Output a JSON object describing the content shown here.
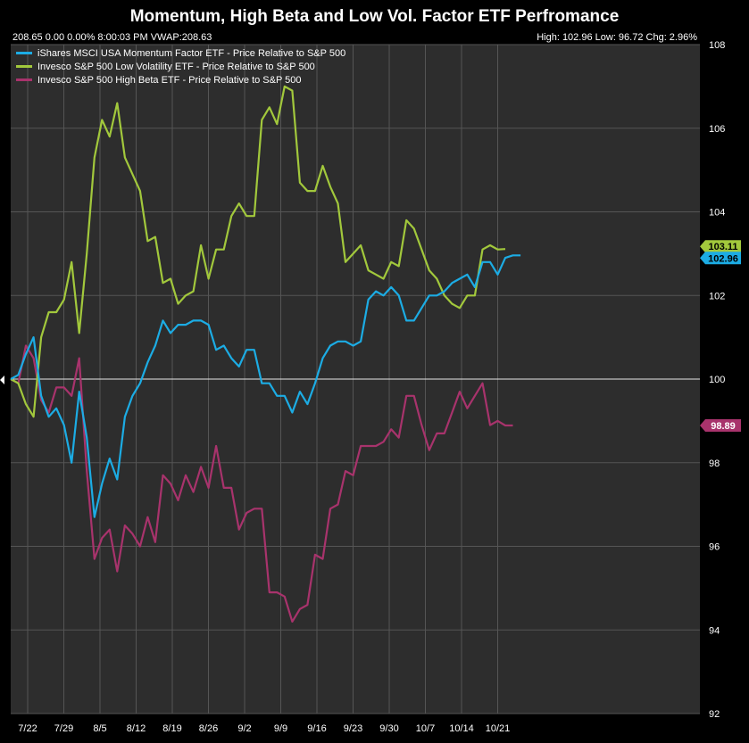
{
  "header": {
    "title": "Momentum, High Beta and Low Vol. Factor ETF Perfromance",
    "info_left": "208.65 0.00 0.00% 8:00:03 PM VWAP:208.63",
    "info_right": "High: 102.96 Low: 96.72 Chg: 2.96%"
  },
  "chart_data": {
    "type": "line",
    "title": "Momentum, High Beta and Low Vol. Factor ETF Perfromance",
    "x_tick_labels": [
      "7/22",
      "7/29",
      "8/5",
      "8/12",
      "8/19",
      "8/26",
      "9/2",
      "9/9",
      "9/16",
      "9/23",
      "9/30",
      "10/7",
      "10/14",
      "10/21"
    ],
    "y_ticks": [
      92,
      94,
      96,
      98,
      100,
      102,
      104,
      106,
      108
    ],
    "ylim": [
      92,
      108
    ],
    "baseline": 100,
    "grid": true,
    "legend_position": "top-left",
    "background": "#2d2d2d",
    "grid_color": "#555555",
    "series": [
      {
        "name": "iShares MSCI USA Momentum Factor ETF - Price Relative to S&P 500",
        "color": "#1cace4",
        "last_label": "102.96",
        "values": [
          100.0,
          100.1,
          100.6,
          101.0,
          99.6,
          99.1,
          99.3,
          98.9,
          98.0,
          99.7,
          98.6,
          96.7,
          97.5,
          98.1,
          97.6,
          99.1,
          99.6,
          99.9,
          100.4,
          100.8,
          101.4,
          101.1,
          101.3,
          101.3,
          101.4,
          101.4,
          101.3,
          100.7,
          100.8,
          100.5,
          100.3,
          100.7,
          100.7,
          99.9,
          99.9,
          99.6,
          99.6,
          99.2,
          99.7,
          99.4,
          99.9,
          100.5,
          100.8,
          100.9,
          100.9,
          100.8,
          100.9,
          101.9,
          102.1,
          102.0,
          102.2,
          102.0,
          101.4,
          101.4,
          101.7,
          102.0,
          102.0,
          102.1,
          102.3,
          102.4,
          102.5,
          102.2,
          102.8,
          102.8,
          102.5,
          102.9,
          102.96,
          102.96
        ]
      },
      {
        "name": "Invesco S&P 500 Low Volatility ETF - Price Relative to S&P 500",
        "color": "#a2c83c",
        "last_label": "103.11",
        "values": [
          100.0,
          99.9,
          99.4,
          99.1,
          101.0,
          101.6,
          101.6,
          101.9,
          102.8,
          101.1,
          103.0,
          105.3,
          106.2,
          105.8,
          106.6,
          105.3,
          104.9,
          104.5,
          103.3,
          103.4,
          102.3,
          102.4,
          101.8,
          102.0,
          102.1,
          103.2,
          102.4,
          103.1,
          103.1,
          103.9,
          104.2,
          103.9,
          103.9,
          106.2,
          106.5,
          106.1,
          107.0,
          106.9,
          104.7,
          104.5,
          104.5,
          105.1,
          104.6,
          104.2,
          102.8,
          103.0,
          103.2,
          102.6,
          102.5,
          102.4,
          102.8,
          102.7,
          103.8,
          103.6,
          103.1,
          102.6,
          102.4,
          102.0,
          101.8,
          101.7,
          102.0,
          102.0,
          103.1,
          103.2,
          103.1,
          103.11
        ]
      },
      {
        "name": "Invesco S&P 500 High Beta ETF - Price Relative to S&P 500",
        "color": "#a8336c",
        "last_label": "98.89",
        "values": [
          100.0,
          99.9,
          100.8,
          100.5,
          99.5,
          99.2,
          99.8,
          99.8,
          99.6,
          100.5,
          97.8,
          95.7,
          96.2,
          96.4,
          95.4,
          96.5,
          96.3,
          96.0,
          96.7,
          96.1,
          97.7,
          97.5,
          97.1,
          97.7,
          97.3,
          97.9,
          97.4,
          98.4,
          97.4,
          97.4,
          96.4,
          96.8,
          96.9,
          96.9,
          94.9,
          94.9,
          94.8,
          94.2,
          94.5,
          94.6,
          95.8,
          95.7,
          96.9,
          97.0,
          97.8,
          97.7,
          98.4,
          98.4,
          98.4,
          98.5,
          98.8,
          98.6,
          99.6,
          99.6,
          98.9,
          98.3,
          98.7,
          98.7,
          99.2,
          99.7,
          99.3,
          99.6,
          99.9,
          98.9,
          99.0,
          98.89,
          98.89
        ]
      }
    ]
  }
}
